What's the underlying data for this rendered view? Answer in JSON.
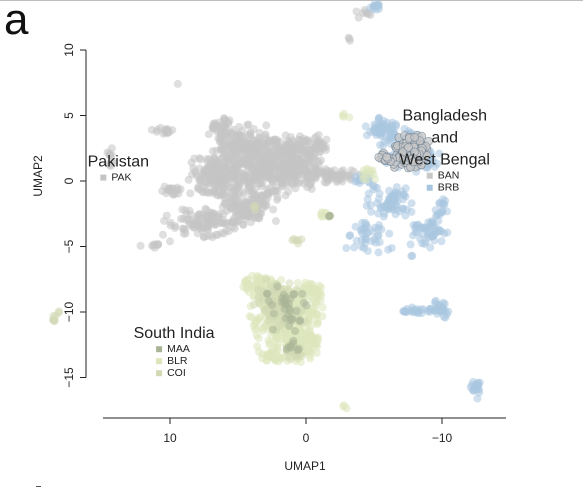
{
  "panel_label": "a",
  "chart_data": {
    "type": "scatter",
    "xlabel": "UMAP1",
    "ylabel": "UMAP2",
    "x_axis_reversed": true,
    "xlim": [
      15,
      -15
    ],
    "ylim": [
      -17,
      10
    ],
    "x_ticks": [
      10,
      0,
      -10
    ],
    "x_tick_labels": [
      "10",
      "0",
      "−10"
    ],
    "y_ticks": [
      10,
      5,
      0,
      -5,
      -10,
      -15
    ],
    "y_tick_labels": [
      "10",
      "5",
      "0",
      "−5",
      "−10",
      "−15"
    ],
    "grid": false,
    "groups": [
      {
        "title": "Pakistan",
        "anchor": [
          13.8,
          1.1
        ],
        "entries": [
          {
            "code": "PAK",
            "color": "#c4c4c4"
          }
        ]
      },
      {
        "title_lines": [
          "Bangladesh",
          "and",
          "West Bengal"
        ],
        "anchor": [
          -10.2,
          4.6
        ],
        "entries": [
          {
            "code": "BAN",
            "color": "#c8c8c8"
          },
          {
            "code": "BRB",
            "color": "#a9c6e0"
          }
        ]
      },
      {
        "title": "South India",
        "anchor": [
          9.7,
          -12.0
        ],
        "entries": [
          {
            "code": "MAA",
            "color": "#a9b497"
          },
          {
            "code": "BLR",
            "color": "#dde5bb"
          },
          {
            "code": "COI",
            "color": "#d2d9b4"
          }
        ]
      }
    ],
    "series": [
      {
        "name": "PAK",
        "color": "#c4c4c4",
        "blobs": [
          {
            "cx": 2.5,
            "cy": 1.0,
            "rx": 3.8,
            "ry": 2.0,
            "n": 420
          },
          {
            "cx": 4.8,
            "cy": 2.6,
            "rx": 2.2,
            "ry": 1.6,
            "n": 160
          },
          {
            "cx": 6.5,
            "cy": 0.2,
            "rx": 2.0,
            "ry": 1.6,
            "n": 150
          },
          {
            "cx": 4.2,
            "cy": -1.8,
            "rx": 2.0,
            "ry": 1.3,
            "n": 130
          },
          {
            "cx": 7.5,
            "cy": -3.2,
            "rx": 2.8,
            "ry": 1.0,
            "n": 110
          },
          {
            "cx": 1.0,
            "cy": 2.2,
            "rx": 1.6,
            "ry": 1.3,
            "n": 90
          },
          {
            "cx": -0.8,
            "cy": 2.8,
            "rx": 0.8,
            "ry": 0.8,
            "n": 30
          },
          {
            "cx": -2.0,
            "cy": 0.4,
            "rx": 1.8,
            "ry": 0.5,
            "n": 70
          },
          {
            "cx": 6.3,
            "cy": 4.3,
            "rx": 0.9,
            "ry": 0.6,
            "n": 25
          },
          {
            "cx": 9.8,
            "cy": -0.7,
            "rx": 0.8,
            "ry": 0.4,
            "n": 18
          },
          {
            "cx": 10.5,
            "cy": 3.8,
            "rx": 0.9,
            "ry": 0.3,
            "n": 14
          },
          {
            "cx": 14.4,
            "cy": 1.8,
            "rx": 0.35,
            "ry": 0.8,
            "n": 12
          },
          {
            "cx": 11.5,
            "cy": -4.9,
            "rx": 0.9,
            "ry": 0.3,
            "n": 8
          },
          {
            "cx": -4.2,
            "cy": 12.8,
            "rx": 0.6,
            "ry": 0.4,
            "n": 8
          },
          {
            "cx": -3.3,
            "cy": 10.8,
            "rx": 0.2,
            "ry": 0.2,
            "n": 3
          },
          {
            "cx": 9.5,
            "cy": 7.5,
            "rx": 0.2,
            "ry": 0.2,
            "n": 1
          },
          {
            "cx": 10.0,
            "cy": -4.5,
            "rx": 0.2,
            "ry": 0.2,
            "n": 1
          }
        ]
      },
      {
        "name": "BRB",
        "color": "#a9c6e0",
        "blobs": [
          {
            "cx": -7.2,
            "cy": 2.6,
            "rx": 1.6,
            "ry": 1.5,
            "n": 110
          },
          {
            "cx": -5.6,
            "cy": 4.0,
            "rx": 1.1,
            "ry": 0.8,
            "n": 45
          },
          {
            "cx": -8.8,
            "cy": 1.6,
            "rx": 1.0,
            "ry": 1.0,
            "n": 45
          },
          {
            "cx": -6.2,
            "cy": -1.6,
            "rx": 1.6,
            "ry": 1.2,
            "n": 70
          },
          {
            "cx": -9.0,
            "cy": -3.8,
            "rx": 1.3,
            "ry": 1.2,
            "n": 50
          },
          {
            "cx": -4.6,
            "cy": -4.3,
            "rx": 1.6,
            "ry": 1.3,
            "n": 40
          },
          {
            "cx": -10.0,
            "cy": -2.0,
            "rx": 0.5,
            "ry": 0.7,
            "n": 15
          },
          {
            "cx": -4.2,
            "cy": 0.2,
            "rx": 0.6,
            "ry": 0.5,
            "n": 18
          },
          {
            "cx": -5.2,
            "cy": 13.3,
            "rx": 0.6,
            "ry": 0.3,
            "n": 12
          },
          {
            "cx": -9.8,
            "cy": -9.8,
            "rx": 0.7,
            "ry": 0.6,
            "n": 25
          },
          {
            "cx": -8.3,
            "cy": -9.9,
            "rx": 1.4,
            "ry": 0.25,
            "n": 25
          },
          {
            "cx": -12.4,
            "cy": -15.7,
            "rx": 0.35,
            "ry": 0.9,
            "n": 18
          },
          {
            "cx": -7.8,
            "cy": -5.6,
            "rx": 0.2,
            "ry": 0.2,
            "n": 2
          }
        ]
      },
      {
        "name": "BAN",
        "color": "#c8c8c8",
        "stroke": "#6a7d90",
        "blobs": [
          {
            "cx": -7.7,
            "cy": 2.2,
            "rx": 1.2,
            "ry": 1.2,
            "n": 170
          },
          {
            "cx": -5.9,
            "cy": 1.8,
            "rx": 0.5,
            "ry": 0.4,
            "n": 20
          }
        ]
      },
      {
        "name": "BLR",
        "color": "#dde5bb",
        "blobs": [
          {
            "cx": 1.6,
            "cy": -10.5,
            "rx": 2.6,
            "ry": 2.4,
            "n": 300
          },
          {
            "cx": 3.3,
            "cy": -8.0,
            "rx": 1.4,
            "ry": 0.8,
            "n": 70
          },
          {
            "cx": 0.4,
            "cy": -12.7,
            "rx": 1.2,
            "ry": 1.2,
            "n": 80
          },
          {
            "cx": -0.3,
            "cy": -8.4,
            "rx": 0.9,
            "ry": 0.8,
            "n": 40
          },
          {
            "cx": 2.3,
            "cy": -13.4,
            "rx": 0.9,
            "ry": 0.5,
            "n": 30
          },
          {
            "cx": -1.2,
            "cy": -2.5,
            "rx": 0.6,
            "ry": 0.3,
            "n": 8
          },
          {
            "cx": -2.8,
            "cy": -17.2,
            "rx": 0.2,
            "ry": 0.2,
            "n": 3
          },
          {
            "cx": -4.5,
            "cy": 0.6,
            "rx": 0.8,
            "ry": 0.6,
            "n": 12
          },
          {
            "cx": -2.9,
            "cy": 5.0,
            "rx": 0.3,
            "ry": 0.2,
            "n": 4
          }
        ]
      },
      {
        "name": "COI",
        "color": "#d2d9b4",
        "blobs": [
          {
            "cx": 2.0,
            "cy": -9.5,
            "rx": 1.8,
            "ry": 1.8,
            "n": 80
          },
          {
            "cx": 1.0,
            "cy": -13.0,
            "rx": 0.8,
            "ry": 0.6,
            "n": 20
          },
          {
            "cx": 0.6,
            "cy": -4.6,
            "rx": 0.4,
            "ry": 0.4,
            "n": 6
          },
          {
            "cx": 18.4,
            "cy": -10.4,
            "rx": 0.35,
            "ry": 0.6,
            "n": 8
          },
          {
            "cx": 3.8,
            "cy": -2.0,
            "rx": 0.3,
            "ry": 0.3,
            "n": 3
          }
        ]
      },
      {
        "name": "MAA",
        "color": "#a9b497",
        "blobs": [
          {
            "cx": 1.6,
            "cy": -9.8,
            "rx": 1.6,
            "ry": 1.6,
            "n": 35
          },
          {
            "cx": 1.0,
            "cy": -12.8,
            "rx": 0.6,
            "ry": 0.6,
            "n": 8
          },
          {
            "cx": -1.5,
            "cy": -2.6,
            "rx": 0.3,
            "ry": 0.2,
            "n": 3
          }
        ]
      }
    ]
  }
}
